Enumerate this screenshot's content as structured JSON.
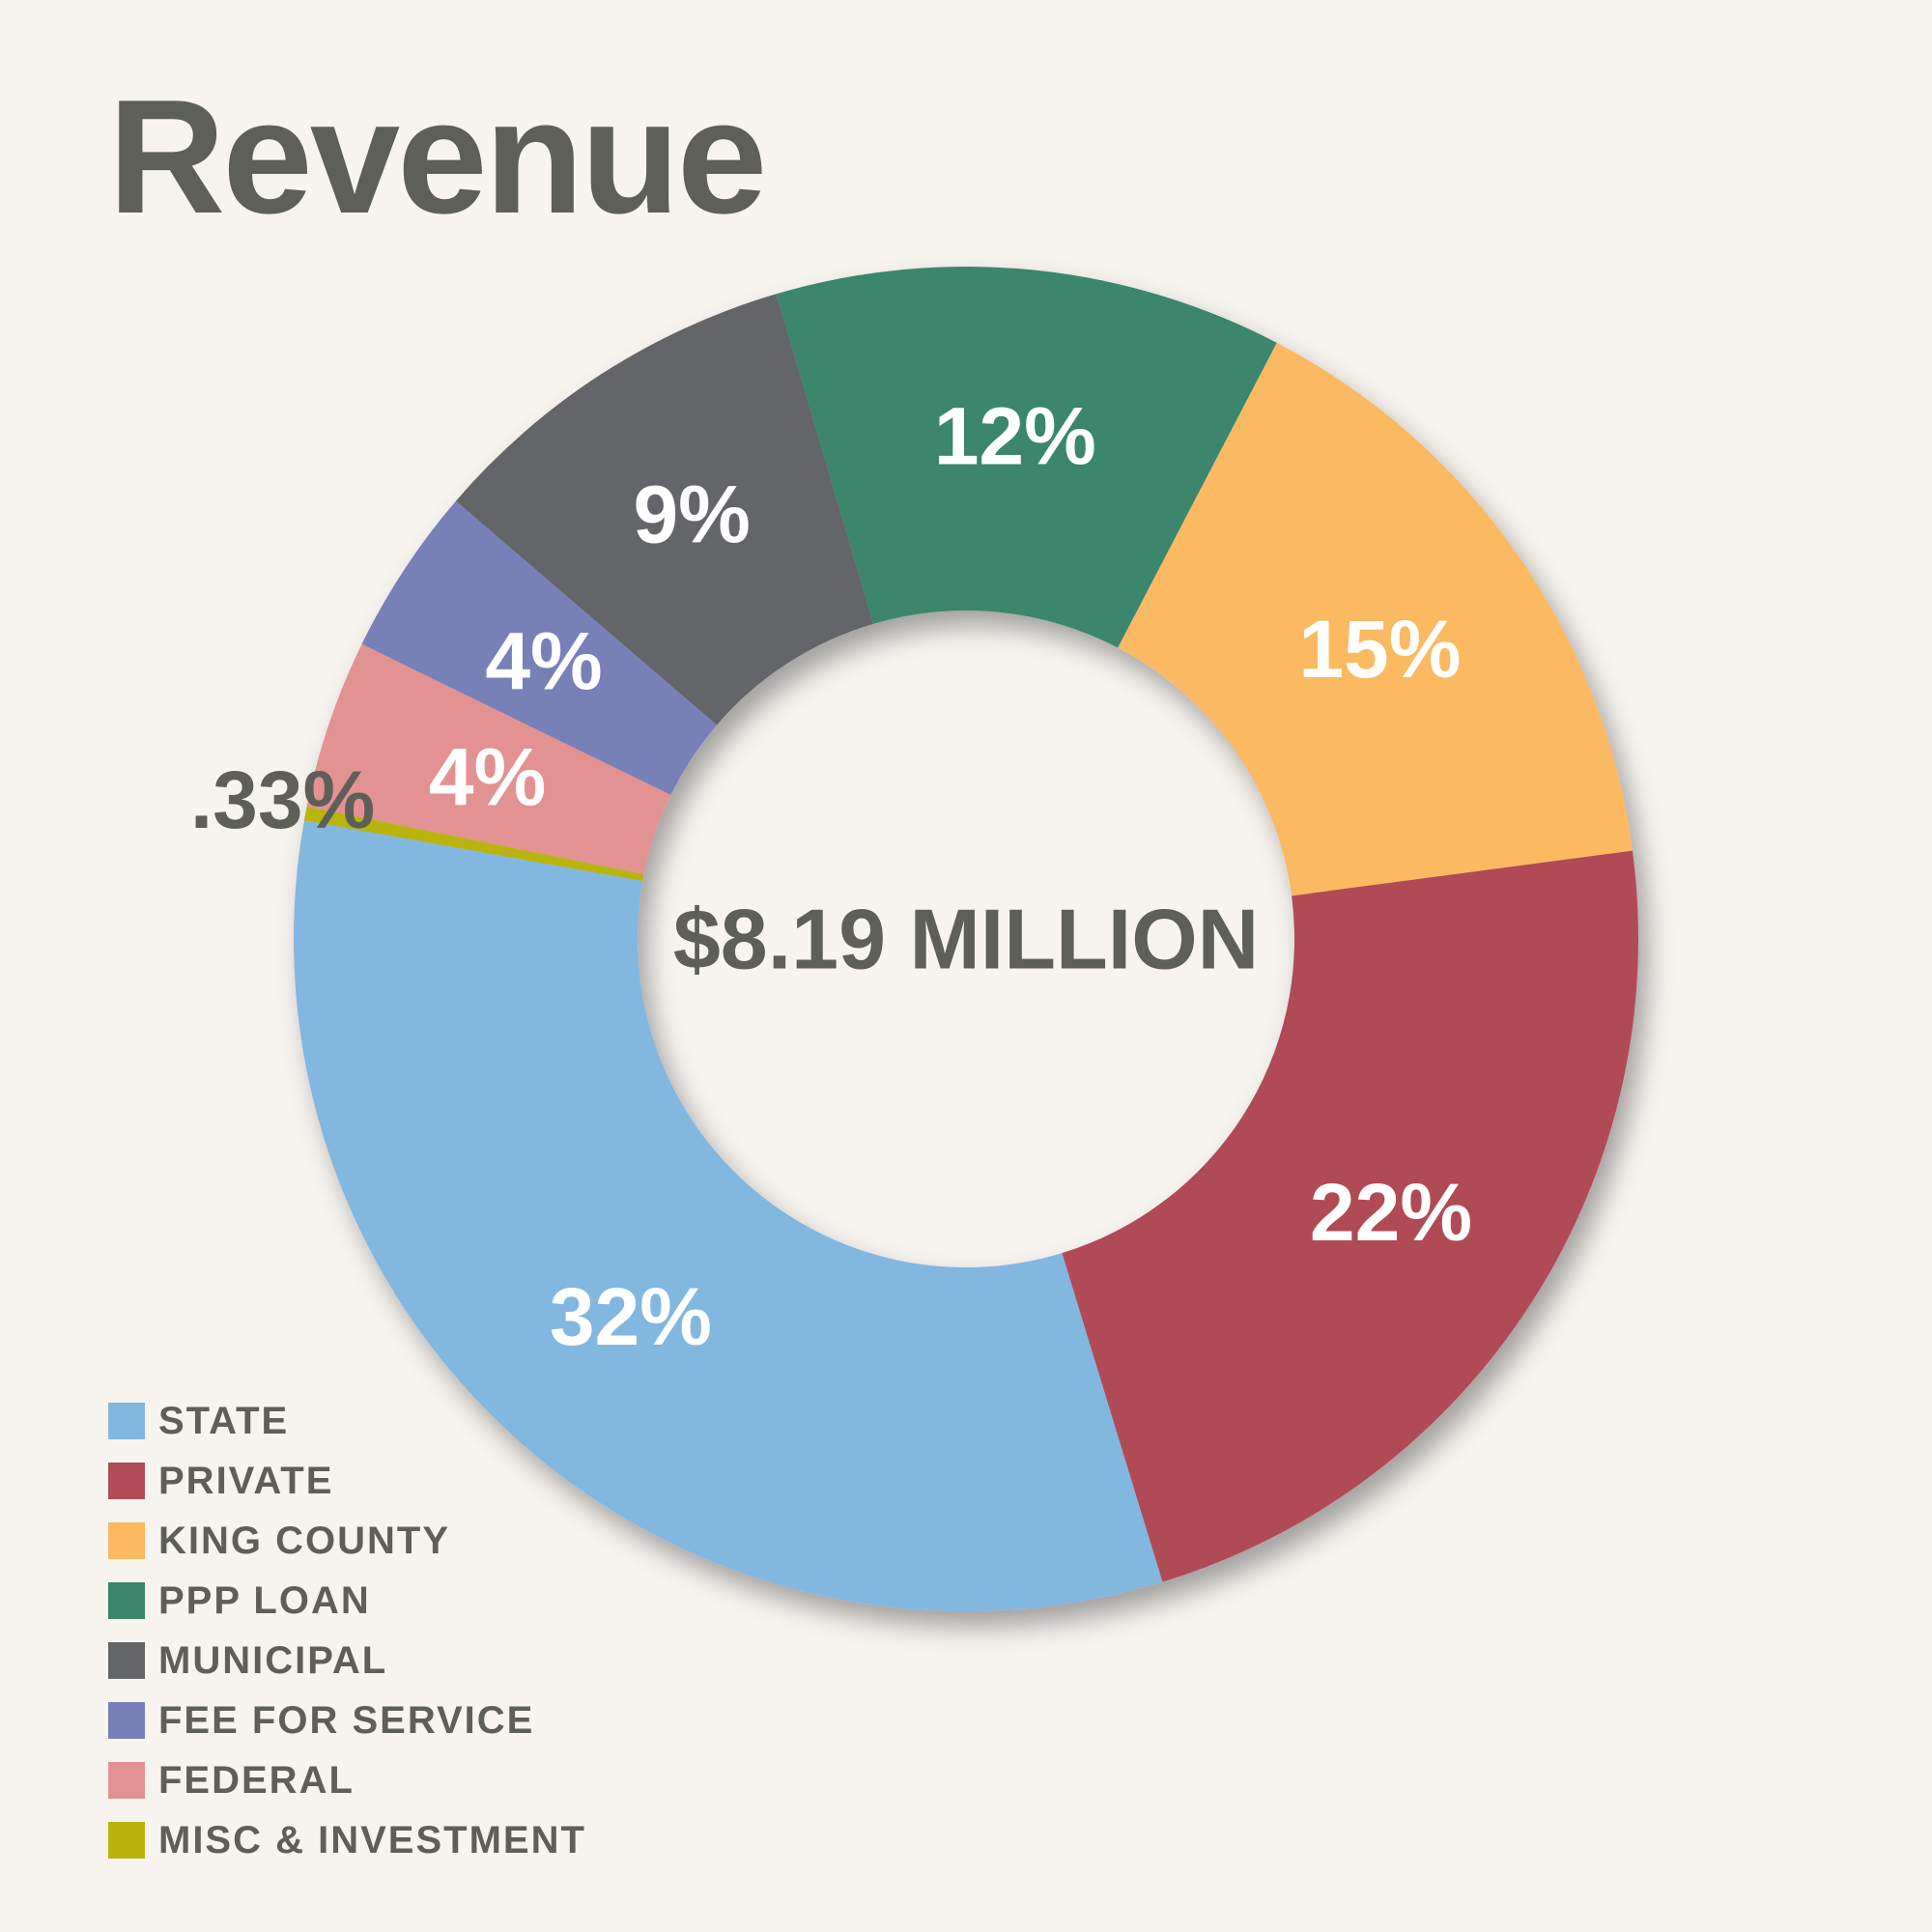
{
  "chart_data": {
    "type": "pie",
    "title": "Revenue",
    "center_label": "$8.19 MILLION",
    "slices": [
      {
        "name": "STATE",
        "value": 32,
        "label": "32%",
        "color": "#82b7e0"
      },
      {
        "name": "MISC & INVESTMENT",
        "value": 0.33,
        "label": ".33%",
        "color": "#b8b40c"
      },
      {
        "name": "FEDERAL",
        "value": 4,
        "label": "4%",
        "color": "#e39292"
      },
      {
        "name": "FEE FOR SERVICE",
        "value": 4,
        "label": "4%",
        "color": "#7880b8"
      },
      {
        "name": "MUNICIPAL",
        "value": 9,
        "label": "9%",
        "color": "#646567"
      },
      {
        "name": "PPP LOAN",
        "value": 12,
        "label": "12%",
        "color": "#3b866c"
      },
      {
        "name": "KING COUNTY",
        "value": 15,
        "label": "15%",
        "color": "#fbb962"
      },
      {
        "name": "PRIVATE",
        "value": 22,
        "label": "22%",
        "color": "#b04b57"
      }
    ],
    "legend": [
      {
        "label": "STATE",
        "color": "#82b7e0"
      },
      {
        "label": "PRIVATE",
        "color": "#b04b57"
      },
      {
        "label": "KING COUNTY",
        "color": "#fbb962"
      },
      {
        "label": "PPP LOAN",
        "color": "#3b866c"
      },
      {
        "label": "MUNICIPAL",
        "color": "#646567"
      },
      {
        "label": "FEE FOR SERVICE",
        "color": "#7880b8"
      },
      {
        "label": "FEDERAL",
        "color": "#e39292"
      },
      {
        "label": "MISC & INVESTMENT",
        "color": "#b8b40c"
      }
    ],
    "legend_position": "bottom-left"
  }
}
